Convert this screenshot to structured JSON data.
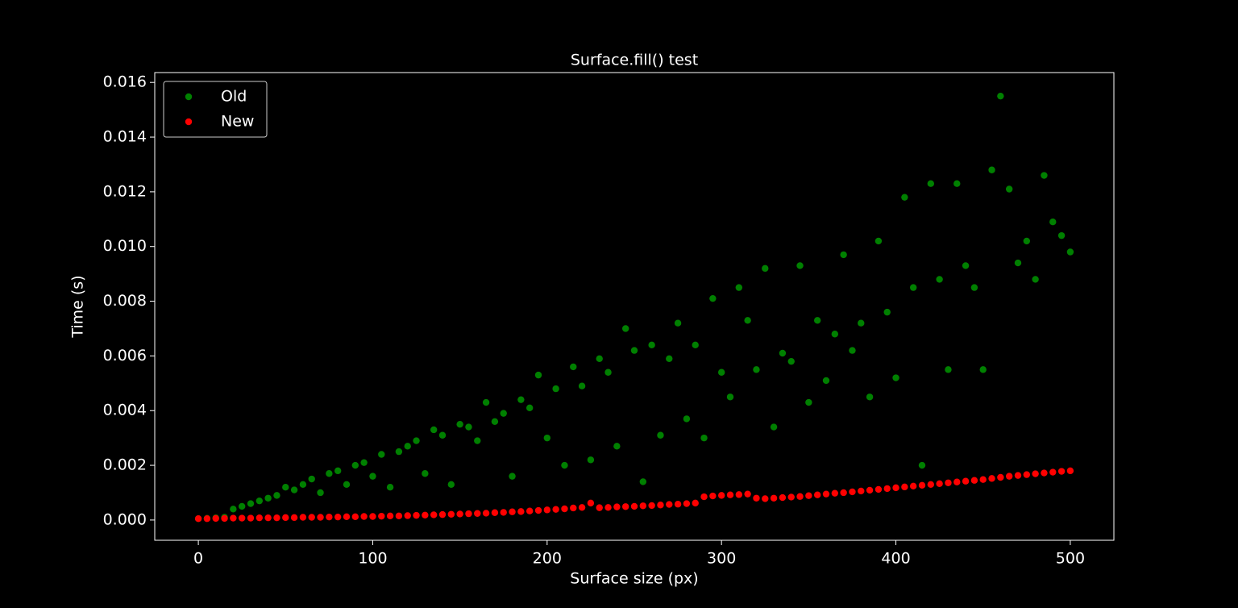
{
  "chart_data": {
    "type": "scatter",
    "title": "Surface.fill() test",
    "x_label": "Surface size (px)",
    "y_label": "Time (s)",
    "x": [
      0,
      5,
      10,
      15,
      20,
      25,
      30,
      35,
      40,
      45,
      50,
      55,
      60,
      65,
      70,
      75,
      80,
      85,
      90,
      95,
      100,
      105,
      110,
      115,
      120,
      125,
      130,
      135,
      140,
      145,
      150,
      155,
      160,
      165,
      170,
      175,
      180,
      185,
      190,
      195,
      200,
      205,
      210,
      215,
      220,
      225,
      230,
      235,
      240,
      245,
      250,
      255,
      260,
      265,
      270,
      275,
      280,
      285,
      290,
      295,
      300,
      305,
      310,
      315,
      320,
      325,
      330,
      335,
      340,
      345,
      350,
      355,
      360,
      365,
      370,
      375,
      380,
      385,
      390,
      395,
      400,
      405,
      410,
      415,
      420,
      425,
      430,
      435,
      440,
      445,
      450,
      455,
      460,
      465,
      470,
      475,
      480,
      485,
      490,
      495,
      500
    ],
    "series": [
      {
        "name": "Old",
        "color": "#008000",
        "values": [
          5e-05,
          6e-05,
          8e-05,
          0.0001,
          0.0004,
          0.0005,
          0.0006,
          0.0007,
          0.0008,
          0.0009,
          0.0012,
          0.0011,
          0.0013,
          0.0015,
          0.001,
          0.0017,
          0.0018,
          0.0013,
          0.002,
          0.0021,
          0.0016,
          0.0024,
          0.0012,
          0.0025,
          0.0027,
          0.0029,
          0.0017,
          0.0033,
          0.0031,
          0.0013,
          0.0035,
          0.0034,
          0.0029,
          0.0043,
          0.0036,
          0.0039,
          0.0016,
          0.0044,
          0.0041,
          0.0053,
          0.003,
          0.0048,
          0.002,
          0.0056,
          0.0049,
          0.0022,
          0.0059,
          0.0054,
          0.0027,
          0.007,
          0.0062,
          0.0014,
          0.0064,
          0.0031,
          0.0059,
          0.0072,
          0.0037,
          0.0064,
          0.003,
          0.0081,
          0.0054,
          0.0045,
          0.0085,
          0.0073,
          0.0055,
          0.0092,
          0.0034,
          0.0061,
          0.0058,
          0.0093,
          0.0043,
          0.0073,
          0.0051,
          0.0068,
          0.0097,
          0.0062,
          0.0072,
          0.0045,
          0.0102,
          0.0076,
          0.0052,
          0.0118,
          0.0085,
          0.002,
          0.0123,
          0.0088,
          0.0055,
          0.0123,
          0.0093,
          0.0085,
          0.0055,
          0.0128,
          0.0155,
          0.0121,
          0.0094,
          0.0102,
          0.0088,
          0.0126,
          0.0109,
          0.0104,
          0.0098
        ]
      },
      {
        "name": "New",
        "color": "#ff0000",
        "values": [
          5e-05,
          5e-05,
          6e-05,
          6e-05,
          7e-05,
          7e-05,
          7e-05,
          8e-05,
          8e-05,
          8e-05,
          9e-05,
          9e-05,
          0.0001,
          0.0001,
          0.0001,
          0.00011,
          0.00011,
          0.00012,
          0.00012,
          0.00013,
          0.00013,
          0.00014,
          0.00015,
          0.00015,
          0.00016,
          0.00017,
          0.00018,
          0.00019,
          0.0002,
          0.00021,
          0.00022,
          0.00023,
          0.00024,
          0.00025,
          0.00027,
          0.00028,
          0.0003,
          0.00031,
          0.00033,
          0.00035,
          0.00037,
          0.00039,
          0.00041,
          0.00044,
          0.00046,
          0.00062,
          0.00045,
          0.00046,
          0.00048,
          0.00049,
          0.0005,
          0.00052,
          0.00053,
          0.00055,
          0.00057,
          0.00058,
          0.0006,
          0.00062,
          0.00085,
          0.00088,
          0.0009,
          0.00092,
          0.00093,
          0.00095,
          0.0008,
          0.00078,
          0.0008,
          0.00082,
          0.00084,
          0.00086,
          0.00089,
          0.00092,
          0.00095,
          0.00098,
          0.001,
          0.00103,
          0.00106,
          0.00109,
          0.00112,
          0.00115,
          0.00118,
          0.00121,
          0.00124,
          0.00127,
          0.0013,
          0.00133,
          0.00136,
          0.00139,
          0.00142,
          0.00145,
          0.00148,
          0.00152,
          0.00156,
          0.0016,
          0.00163,
          0.00166,
          0.00169,
          0.00172,
          0.00175,
          0.00178,
          0.0018
        ]
      }
    ],
    "xlim": [
      -25,
      525
    ],
    "xticks": [
      0,
      100,
      200,
      300,
      400,
      500
    ],
    "ylim": [
      -0.00074,
      0.01636
    ],
    "yticks": [
      {
        "value": 0,
        "label": "0.000"
      },
      {
        "value": 0.002,
        "label": "0.002"
      },
      {
        "value": 0.004,
        "label": "0.004"
      },
      {
        "value": 0.006,
        "label": "0.006"
      },
      {
        "value": 0.008,
        "label": "0.008"
      },
      {
        "value": 0.01,
        "label": "0.010"
      },
      {
        "value": 0.012,
        "label": "0.012"
      },
      {
        "value": 0.014,
        "label": "0.014"
      },
      {
        "value": 0.016,
        "label": "0.016"
      }
    ],
    "legend": "upper left",
    "grid": false
  }
}
